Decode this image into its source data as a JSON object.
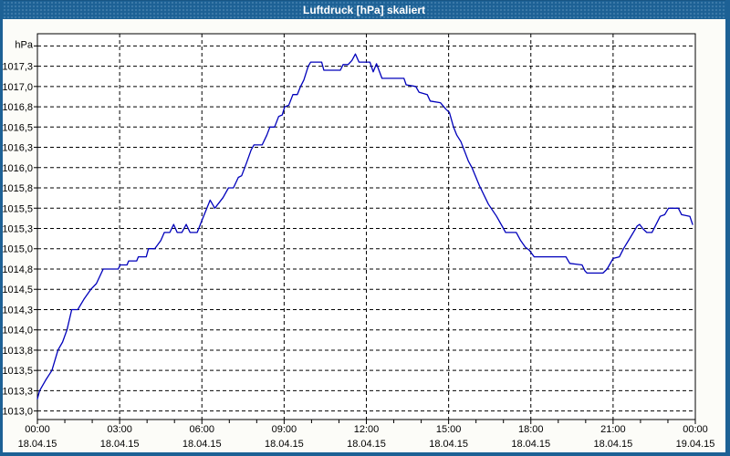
{
  "window": {
    "title": "Luftdruck [hPa] skaliert"
  },
  "colors": {
    "titlebar_bg": "#1d6195",
    "frame_border": "#1d6195",
    "background": "#fcfcf8",
    "plot_bg": "#ffffff",
    "plot_border": "#000000",
    "grid": "#000000",
    "line": "#0000bb",
    "title_text": "#ffffff",
    "label_text": "#000000"
  },
  "chart_data": {
    "type": "line",
    "title": "Luftdruck [hPa] skaliert",
    "ylabel_unit": "hPa",
    "grid": "dashed",
    "legend": "none",
    "x_axis": {
      "range_hours": [
        0,
        24
      ],
      "major_tick_interval_hours": 3,
      "minor_tick_interval_hours": 1,
      "ticks": [
        {
          "time": "00:00",
          "date": "18.04.15"
        },
        {
          "time": "03:00",
          "date": "18.04.15"
        },
        {
          "time": "06:00",
          "date": "18.04.15"
        },
        {
          "time": "09:00",
          "date": "18.04.15"
        },
        {
          "time": "12:00",
          "date": "18.04.15"
        },
        {
          "time": "15:00",
          "date": "18.04.15"
        },
        {
          "time": "18:00",
          "date": "18.04.15"
        },
        {
          "time": "21:00",
          "date": "18.04.15"
        },
        {
          "time": "00:00",
          "date": "19.04.15"
        }
      ]
    },
    "y_axis": {
      "range": [
        1012.895,
        1017.65
      ],
      "grid_interval": 0.25,
      "ticks": [
        {
          "value": 1013.0,
          "label": "1013,0"
        },
        {
          "value": 1013.25,
          "label": "1013,3"
        },
        {
          "value": 1013.5,
          "label": "1013,5"
        },
        {
          "value": 1013.75,
          "label": "1013,8"
        },
        {
          "value": 1014.0,
          "label": "1014,0"
        },
        {
          "value": 1014.25,
          "label": "1014,3"
        },
        {
          "value": 1014.5,
          "label": "1014,5"
        },
        {
          "value": 1014.75,
          "label": "1014,8"
        },
        {
          "value": 1015.0,
          "label": "1015,0"
        },
        {
          "value": 1015.25,
          "label": "1015,3"
        },
        {
          "value": 1015.5,
          "label": "1015,5"
        },
        {
          "value": 1015.75,
          "label": "1015,8"
        },
        {
          "value": 1016.0,
          "label": "1016,0"
        },
        {
          "value": 1016.25,
          "label": "1016,3"
        },
        {
          "value": 1016.5,
          "label": "1016,5"
        },
        {
          "value": 1016.75,
          "label": "1016,8"
        },
        {
          "value": 1017.0,
          "label": "1017,0"
        },
        {
          "value": 1017.25,
          "label": "1017,3"
        },
        {
          "value": 1017.5,
          "label": ""
        }
      ]
    },
    "series": [
      {
        "name": "Luftdruck",
        "unit": "hPa",
        "color": "#0000bb",
        "points": [
          [
            0.0,
            1013.15
          ],
          [
            0.08,
            1013.25
          ],
          [
            0.3,
            1013.38
          ],
          [
            0.53,
            1013.5
          ],
          [
            0.75,
            1013.75
          ],
          [
            0.92,
            1013.85
          ],
          [
            1.08,
            1014.0
          ],
          [
            1.25,
            1014.25
          ],
          [
            1.47,
            1014.25
          ],
          [
            1.7,
            1014.38
          ],
          [
            1.95,
            1014.5
          ],
          [
            2.15,
            1014.57
          ],
          [
            2.4,
            1014.75
          ],
          [
            2.95,
            1014.75
          ],
          [
            3.02,
            1014.8
          ],
          [
            3.27,
            1014.8
          ],
          [
            3.33,
            1014.85
          ],
          [
            3.62,
            1014.85
          ],
          [
            3.68,
            1014.9
          ],
          [
            3.97,
            1014.9
          ],
          [
            4.05,
            1015.0
          ],
          [
            4.28,
            1015.0
          ],
          [
            4.5,
            1015.1
          ],
          [
            4.63,
            1015.2
          ],
          [
            4.83,
            1015.2
          ],
          [
            4.97,
            1015.3
          ],
          [
            5.1,
            1015.2
          ],
          [
            5.27,
            1015.2
          ],
          [
            5.43,
            1015.3
          ],
          [
            5.57,
            1015.2
          ],
          [
            5.83,
            1015.2
          ],
          [
            6.0,
            1015.35
          ],
          [
            6.3,
            1015.6
          ],
          [
            6.47,
            1015.5
          ],
          [
            6.77,
            1015.63
          ],
          [
            6.97,
            1015.75
          ],
          [
            7.15,
            1015.75
          ],
          [
            7.33,
            1015.88
          ],
          [
            7.45,
            1015.9
          ],
          [
            7.62,
            1016.05
          ],
          [
            7.8,
            1016.22
          ],
          [
            7.9,
            1016.28
          ],
          [
            8.2,
            1016.28
          ],
          [
            8.37,
            1016.4
          ],
          [
            8.48,
            1016.5
          ],
          [
            8.65,
            1016.5
          ],
          [
            8.8,
            1016.63
          ],
          [
            8.93,
            1016.65
          ],
          [
            9.02,
            1016.75
          ],
          [
            9.17,
            1016.77
          ],
          [
            9.32,
            1016.9
          ],
          [
            9.48,
            1016.9
          ],
          [
            9.6,
            1017.0
          ],
          [
            9.72,
            1017.08
          ],
          [
            9.88,
            1017.25
          ],
          [
            9.97,
            1017.3
          ],
          [
            10.37,
            1017.3
          ],
          [
            10.45,
            1017.2
          ],
          [
            11.05,
            1017.2
          ],
          [
            11.15,
            1017.27
          ],
          [
            11.33,
            1017.27
          ],
          [
            11.47,
            1017.32
          ],
          [
            11.6,
            1017.4
          ],
          [
            11.73,
            1017.3
          ],
          [
            12.13,
            1017.3
          ],
          [
            12.25,
            1017.18
          ],
          [
            12.37,
            1017.28
          ],
          [
            12.57,
            1017.1
          ],
          [
            13.37,
            1017.1
          ],
          [
            13.45,
            1017.02
          ],
          [
            13.8,
            1017.0
          ],
          [
            13.92,
            1016.93
          ],
          [
            14.22,
            1016.9
          ],
          [
            14.33,
            1016.82
          ],
          [
            14.7,
            1016.8
          ],
          [
            14.9,
            1016.72
          ],
          [
            15.03,
            1016.68
          ],
          [
            15.18,
            1016.5
          ],
          [
            15.3,
            1016.4
          ],
          [
            15.45,
            1016.32
          ],
          [
            15.72,
            1016.08
          ],
          [
            15.85,
            1016.0
          ],
          [
            16.12,
            1015.78
          ],
          [
            16.45,
            1015.55
          ],
          [
            16.75,
            1015.4
          ],
          [
            17.0,
            1015.25
          ],
          [
            17.08,
            1015.2
          ],
          [
            17.47,
            1015.2
          ],
          [
            17.63,
            1015.1
          ],
          [
            17.8,
            1015.02
          ],
          [
            17.95,
            1014.98
          ],
          [
            18.12,
            1014.9
          ],
          [
            19.28,
            1014.9
          ],
          [
            19.42,
            1014.82
          ],
          [
            19.87,
            1014.8
          ],
          [
            19.97,
            1014.73
          ],
          [
            20.05,
            1014.7
          ],
          [
            20.63,
            1014.7
          ],
          [
            20.78,
            1014.75
          ],
          [
            21.0,
            1014.88
          ],
          [
            21.23,
            1014.9
          ],
          [
            21.38,
            1015.0
          ],
          [
            21.65,
            1015.15
          ],
          [
            21.88,
            1015.28
          ],
          [
            21.97,
            1015.3
          ],
          [
            22.08,
            1015.25
          ],
          [
            22.23,
            1015.2
          ],
          [
            22.42,
            1015.2
          ],
          [
            22.57,
            1015.3
          ],
          [
            22.72,
            1015.4
          ],
          [
            22.88,
            1015.42
          ],
          [
            23.02,
            1015.5
          ],
          [
            23.38,
            1015.5
          ],
          [
            23.5,
            1015.42
          ],
          [
            23.8,
            1015.4
          ],
          [
            23.9,
            1015.3
          ]
        ]
      }
    ]
  }
}
